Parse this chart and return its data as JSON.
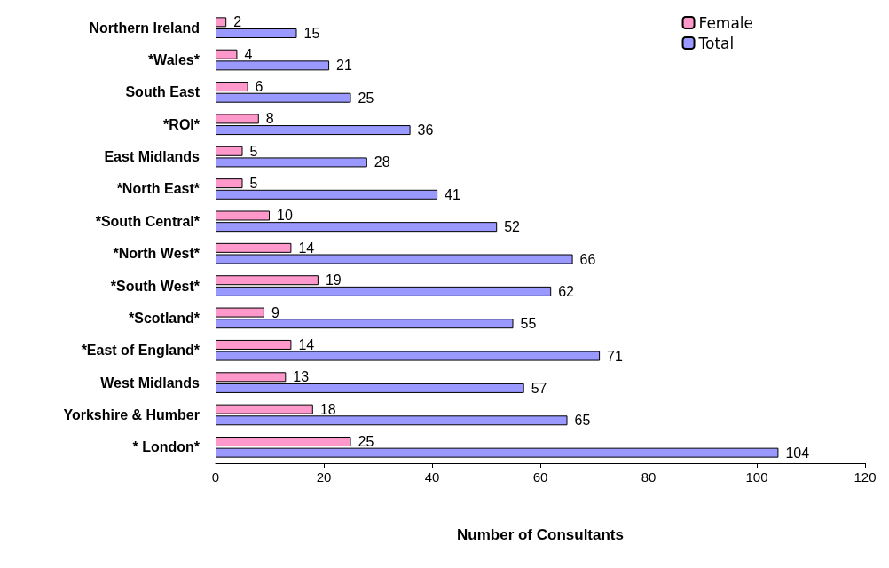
{
  "chart_data": {
    "type": "bar",
    "orientation": "horizontal",
    "xlabel": "Number of Consultants",
    "categories": [
      "Northern Ireland",
      "*Wales*",
      "South East",
      "*ROI*",
      "East Midlands",
      "*North East*",
      "*South Central*",
      "*North West*",
      "*South West*",
      "*Scotland*",
      "*East of England*",
      "West Midlands",
      "Yorkshire & Humber",
      "* London*"
    ],
    "series": [
      {
        "name": "Female",
        "color": "#ff99cc",
        "values": [
          2,
          4,
          6,
          8,
          5,
          5,
          10,
          14,
          19,
          9,
          14,
          13,
          18,
          25
        ]
      },
      {
        "name": "Total",
        "color": "#9999ff",
        "values": [
          15,
          21,
          25,
          36,
          28,
          41,
          52,
          66,
          62,
          55,
          71,
          57,
          65,
          104
        ]
      }
    ],
    "xlim": [
      0,
      120
    ],
    "xticks": [
      0,
      20,
      40,
      60,
      80,
      100,
      120
    ],
    "grid": false,
    "legend": "top right",
    "data_labels": true
  }
}
